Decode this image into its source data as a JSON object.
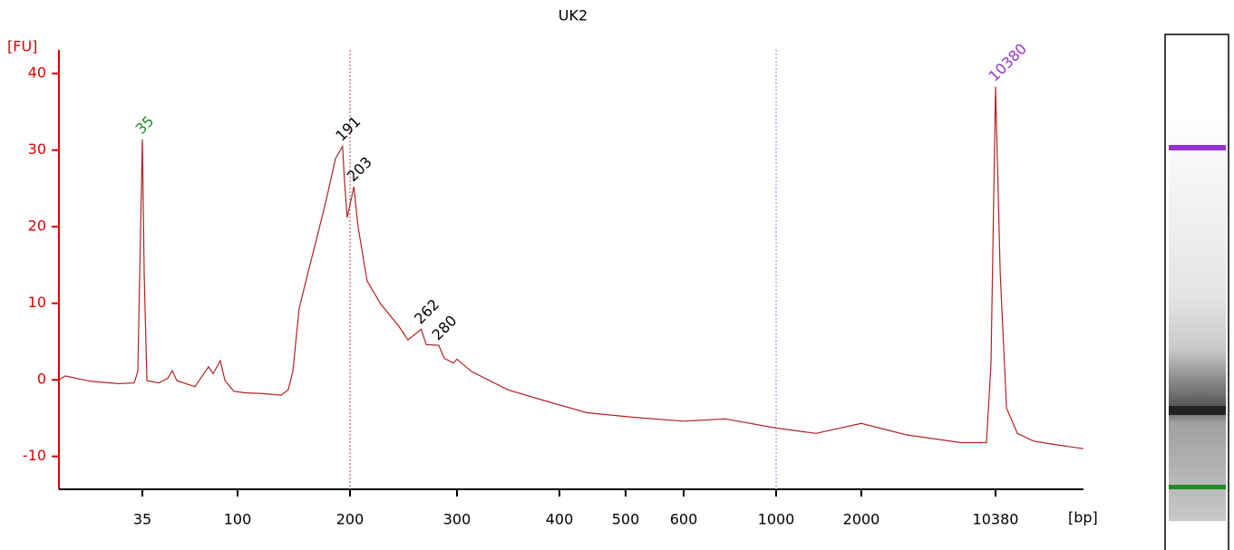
{
  "chart_data": {
    "type": "line",
    "title": "UK2",
    "y_label": "[FU]",
    "x_label": "[bp]",
    "x_scale": "log",
    "axis_color": "#e00000",
    "xlim": [
      14,
      30500
    ],
    "ylim": [
      -14.3,
      43.1
    ],
    "xticks": [
      35,
      100,
      200,
      300,
      400,
      500,
      600,
      1000,
      2000,
      10380
    ],
    "yticks": [
      -10,
      0,
      10,
      20,
      30,
      40
    ],
    "x": [
      14,
      15,
      20,
      27,
      32,
      33.3,
      35,
      35.7,
      36.8,
      41.9,
      46.3,
      48.7,
      51.2,
      62.5,
      72.6,
      76.4,
      82.7,
      87,
      96,
      104.6,
      117,
      130.8,
      136.7,
      140.6,
      146.2,
      154.6,
      163.5,
      172.9,
      182.9,
      191,
      193.4,
      196.6,
      203,
      206.2,
      213.4,
      224.7,
      240.7,
      249,
      262,
      267,
      280,
      285.9,
      296,
      300,
      312.5,
      346,
      383,
      439,
      514,
      600,
      755,
      1000,
      1383,
      2000,
      3488,
      6800,
      9290,
      9820,
      10380,
      10980,
      11870,
      13560,
      16560,
      20700,
      30500
    ],
    "series": [
      {
        "color": "#b22222",
        "values": [
          0,
          0.5,
          -0.2,
          -0.5,
          -0.4,
          1.1,
          31.4,
          14,
          -0.1,
          -0.4,
          0.2,
          1.2,
          -0.1,
          -0.9,
          1.7,
          0.8,
          2.5,
          -0.1,
          -1.5,
          -1.7,
          -1.8,
          -2.0,
          -1.3,
          1.1,
          9.3,
          14.1,
          18.8,
          23.6,
          28.9,
          30.5,
          25.9,
          21.2,
          25.2,
          20,
          12.9,
          9.9,
          7.0,
          5.2,
          6.6,
          4.6,
          4.5,
          2.8,
          2.2,
          2.7,
          1.1,
          -1.3,
          -2.7,
          -4.3,
          -4.9,
          -5.4,
          -5.1,
          -6.3,
          -7.0,
          -5.7,
          -7.2,
          -8.2,
          -8.2,
          2.2,
          38.3,
          14.1,
          -3.7,
          -7.0,
          -8.0,
          -8.4,
          -9.0
        ]
      }
    ],
    "peaks": [
      {
        "x": 35,
        "y": 31.4,
        "color": "#228b22"
      },
      {
        "x": 191,
        "y": 30.5,
        "color": "#000000"
      },
      {
        "x": 203,
        "y": 25.2,
        "color": "#000000"
      },
      {
        "x": 262,
        "y": 6.6,
        "color": "#000000"
      },
      {
        "x": 280,
        "y": 4.5,
        "color": "#000000"
      },
      {
        "x": 10380,
        "y": 38.3,
        "color": "#9932cc"
      }
    ],
    "ref_lines": [
      {
        "x": 200,
        "color": "#a05050"
      },
      {
        "x": 1000,
        "color": "#8080d0"
      }
    ]
  }
}
